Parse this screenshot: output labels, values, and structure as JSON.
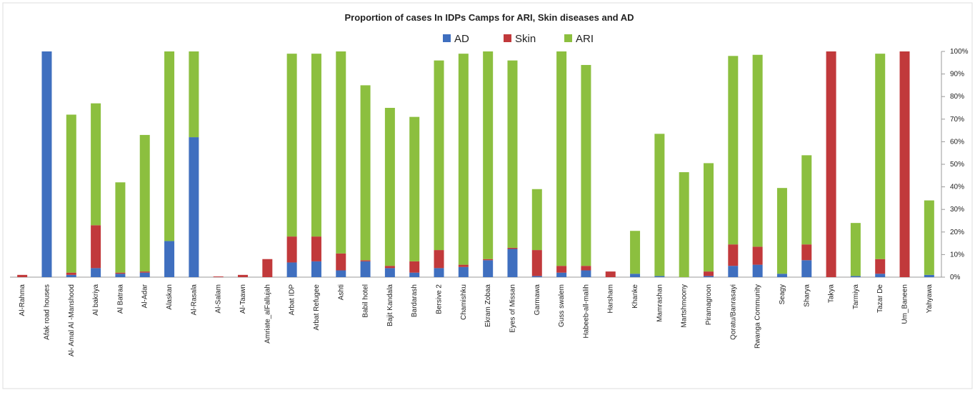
{
  "chart_data": {
    "type": "stacked_bar",
    "title": "Proportion of cases In IDPs Camps for ARI, Skin diseases and AD",
    "categories": [
      "Al-Rahma",
      "Afak road houses",
      "Al- Amal Al -Manshood",
      "Al bakriya",
      "Al Batraa",
      "Al-Adar",
      "Alaskan",
      "Al-Rasala",
      "Al-Salam",
      "Al-Taawn",
      "Amriate_alFallujah",
      "Arbat IDP",
      "Arbat Refugee",
      "Ashti",
      "Babil hotel",
      "Bajit Kandala",
      "Bardarash",
      "Bersive 2",
      "Chamishku",
      "Ekram Zobaa",
      "Eyes of Missan",
      "Garmawa",
      "Guss swalem",
      "Habeeb-all-malih",
      "Harsham",
      "Khanke",
      "Mamrashan",
      "Martshmoony",
      "Piramagroon",
      "Qoratu/Banrasayi",
      "Rwanga Community",
      "Seagy",
      "Sharya",
      "Takya",
      "Tarmiya",
      "Tazar De",
      "Um_Baneen",
      "Yahyawa"
    ],
    "series": [
      {
        "name": "AD",
        "color": "#3f6fbf",
        "values": [
          0,
          100,
          1,
          4,
          1.5,
          2,
          16,
          62,
          0,
          0,
          0,
          6.5,
          7,
          3,
          7,
          4,
          2,
          4,
          4.5,
          7.5,
          12.5,
          0.5,
          2,
          3,
          0,
          1.5,
          0.5,
          0,
          0.5,
          5,
          5.5,
          1.5,
          7.5,
          0,
          0.5,
          1.5,
          0,
          1
        ]
      },
      {
        "name": "Skin",
        "color": "#c1393b",
        "values": [
          1,
          0,
          1,
          19,
          0.5,
          0.5,
          0,
          0,
          0.3,
          1,
          8,
          11.5,
          11,
          7.5,
          0.5,
          1,
          5,
          8,
          1,
          0.5,
          0.5,
          11.5,
          3,
          2,
          2.5,
          0,
          0,
          0,
          2,
          9.5,
          8,
          0,
          7,
          100,
          0,
          6.5,
          100,
          0
        ]
      },
      {
        "name": "ARI",
        "color": "#8cbf3f",
        "values": [
          0,
          0,
          70,
          54,
          40,
          60.5,
          84,
          38,
          0,
          0,
          0,
          81,
          81,
          89.5,
          77.5,
          70,
          64,
          84,
          93.5,
          92,
          83,
          27,
          95,
          89,
          0,
          19,
          63,
          46.5,
          48,
          83.5,
          85,
          38,
          39.5,
          0,
          23.5,
          91,
          0,
          33
        ]
      }
    ],
    "ylim": [
      0,
      100
    ],
    "yticks": [
      {
        "value": 0,
        "label": "0%"
      },
      {
        "value": 10,
        "label": "10%"
      },
      {
        "value": 20,
        "label": "20%"
      },
      {
        "value": 30,
        "label": "30%"
      },
      {
        "value": 40,
        "label": "40%"
      },
      {
        "value": 50,
        "label": "50%"
      },
      {
        "value": 60,
        "label": "60%"
      },
      {
        "value": 70,
        "label": "70%"
      },
      {
        "value": 80,
        "label": "80%"
      },
      {
        "value": 90,
        "label": "90%"
      },
      {
        "value": 100,
        "label": "100%"
      }
    ],
    "legend": "top"
  }
}
